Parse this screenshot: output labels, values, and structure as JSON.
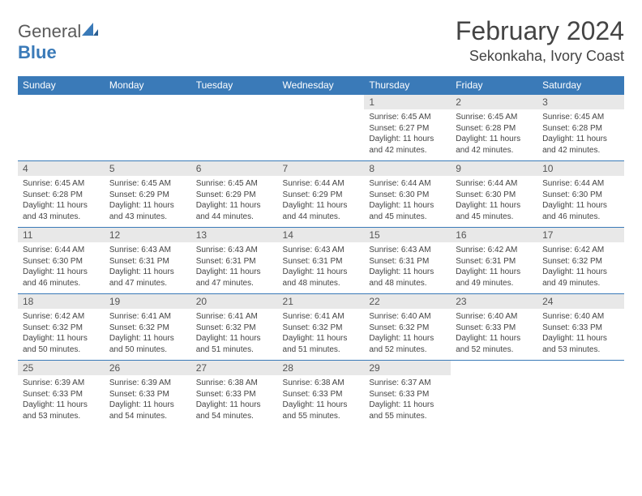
{
  "logo": {
    "text1": "General",
    "text2": "Blue"
  },
  "title": "February 2024",
  "location": "Sekonkaha, Ivory Coast",
  "colors": {
    "header_bg": "#3a7ab8",
    "header_fg": "#ffffff",
    "daynum_bg": "#e8e8e8",
    "border": "#3a7ab8",
    "text": "#444444"
  },
  "type": "table",
  "columns": [
    "Sunday",
    "Monday",
    "Tuesday",
    "Wednesday",
    "Thursday",
    "Friday",
    "Saturday"
  ],
  "weeks": [
    [
      null,
      null,
      null,
      null,
      {
        "n": "1",
        "sunrise": "6:45 AM",
        "sunset": "6:27 PM",
        "dl": "11 hours and 42 minutes."
      },
      {
        "n": "2",
        "sunrise": "6:45 AM",
        "sunset": "6:28 PM",
        "dl": "11 hours and 42 minutes."
      },
      {
        "n": "3",
        "sunrise": "6:45 AM",
        "sunset": "6:28 PM",
        "dl": "11 hours and 42 minutes."
      }
    ],
    [
      {
        "n": "4",
        "sunrise": "6:45 AM",
        "sunset": "6:28 PM",
        "dl": "11 hours and 43 minutes."
      },
      {
        "n": "5",
        "sunrise": "6:45 AM",
        "sunset": "6:29 PM",
        "dl": "11 hours and 43 minutes."
      },
      {
        "n": "6",
        "sunrise": "6:45 AM",
        "sunset": "6:29 PM",
        "dl": "11 hours and 44 minutes."
      },
      {
        "n": "7",
        "sunrise": "6:44 AM",
        "sunset": "6:29 PM",
        "dl": "11 hours and 44 minutes."
      },
      {
        "n": "8",
        "sunrise": "6:44 AM",
        "sunset": "6:30 PM",
        "dl": "11 hours and 45 minutes."
      },
      {
        "n": "9",
        "sunrise": "6:44 AM",
        "sunset": "6:30 PM",
        "dl": "11 hours and 45 minutes."
      },
      {
        "n": "10",
        "sunrise": "6:44 AM",
        "sunset": "6:30 PM",
        "dl": "11 hours and 46 minutes."
      }
    ],
    [
      {
        "n": "11",
        "sunrise": "6:44 AM",
        "sunset": "6:30 PM",
        "dl": "11 hours and 46 minutes."
      },
      {
        "n": "12",
        "sunrise": "6:43 AM",
        "sunset": "6:31 PM",
        "dl": "11 hours and 47 minutes."
      },
      {
        "n": "13",
        "sunrise": "6:43 AM",
        "sunset": "6:31 PM",
        "dl": "11 hours and 47 minutes."
      },
      {
        "n": "14",
        "sunrise": "6:43 AM",
        "sunset": "6:31 PM",
        "dl": "11 hours and 48 minutes."
      },
      {
        "n": "15",
        "sunrise": "6:43 AM",
        "sunset": "6:31 PM",
        "dl": "11 hours and 48 minutes."
      },
      {
        "n": "16",
        "sunrise": "6:42 AM",
        "sunset": "6:31 PM",
        "dl": "11 hours and 49 minutes."
      },
      {
        "n": "17",
        "sunrise": "6:42 AM",
        "sunset": "6:32 PM",
        "dl": "11 hours and 49 minutes."
      }
    ],
    [
      {
        "n": "18",
        "sunrise": "6:42 AM",
        "sunset": "6:32 PM",
        "dl": "11 hours and 50 minutes."
      },
      {
        "n": "19",
        "sunrise": "6:41 AM",
        "sunset": "6:32 PM",
        "dl": "11 hours and 50 minutes."
      },
      {
        "n": "20",
        "sunrise": "6:41 AM",
        "sunset": "6:32 PM",
        "dl": "11 hours and 51 minutes."
      },
      {
        "n": "21",
        "sunrise": "6:41 AM",
        "sunset": "6:32 PM",
        "dl": "11 hours and 51 minutes."
      },
      {
        "n": "22",
        "sunrise": "6:40 AM",
        "sunset": "6:32 PM",
        "dl": "11 hours and 52 minutes."
      },
      {
        "n": "23",
        "sunrise": "6:40 AM",
        "sunset": "6:33 PM",
        "dl": "11 hours and 52 minutes."
      },
      {
        "n": "24",
        "sunrise": "6:40 AM",
        "sunset": "6:33 PM",
        "dl": "11 hours and 53 minutes."
      }
    ],
    [
      {
        "n": "25",
        "sunrise": "6:39 AM",
        "sunset": "6:33 PM",
        "dl": "11 hours and 53 minutes."
      },
      {
        "n": "26",
        "sunrise": "6:39 AM",
        "sunset": "6:33 PM",
        "dl": "11 hours and 54 minutes."
      },
      {
        "n": "27",
        "sunrise": "6:38 AM",
        "sunset": "6:33 PM",
        "dl": "11 hours and 54 minutes."
      },
      {
        "n": "28",
        "sunrise": "6:38 AM",
        "sunset": "6:33 PM",
        "dl": "11 hours and 55 minutes."
      },
      {
        "n": "29",
        "sunrise": "6:37 AM",
        "sunset": "6:33 PM",
        "dl": "11 hours and 55 minutes."
      },
      null,
      null
    ]
  ],
  "labels": {
    "sunrise": "Sunrise:",
    "sunset": "Sunset:",
    "daylight": "Daylight:"
  }
}
